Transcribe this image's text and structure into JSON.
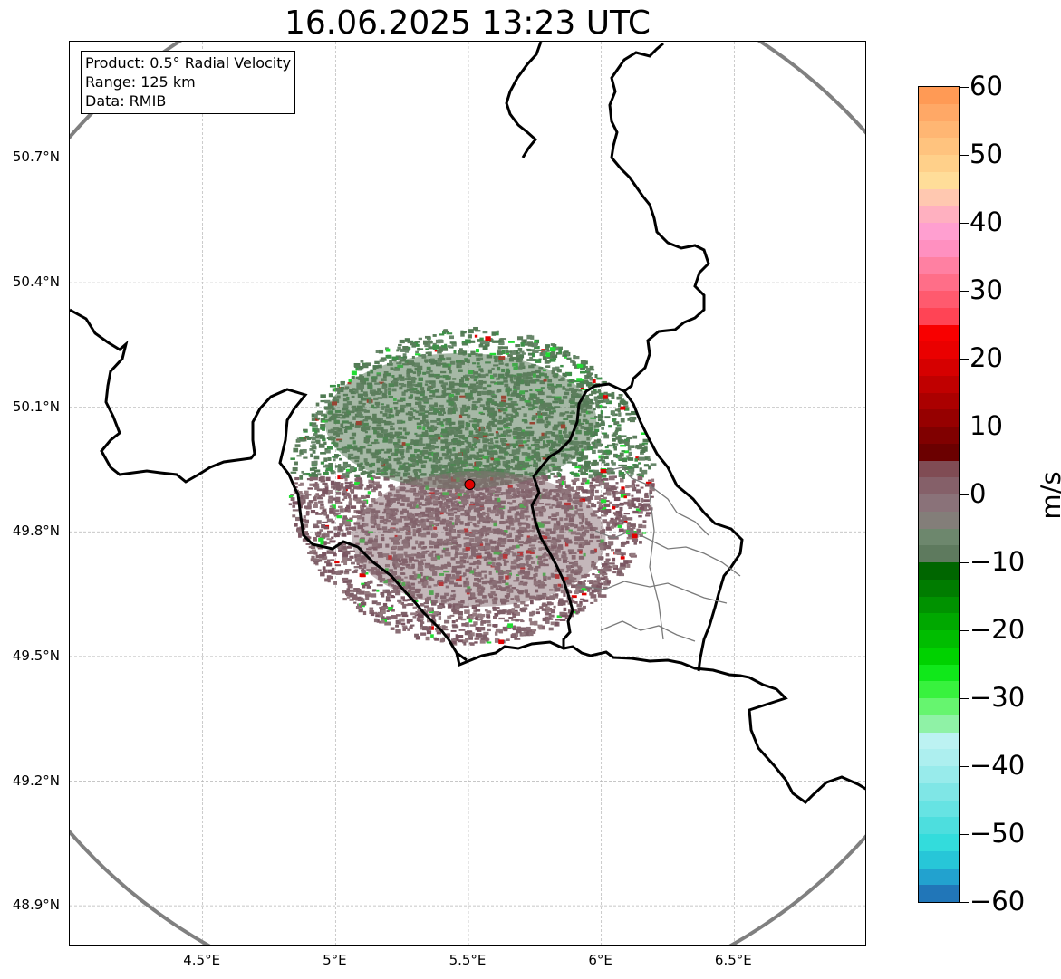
{
  "title": "16.06.2025 13:23 UTC",
  "info_box": {
    "product": "Product: 0.5° Radial Velocity",
    "range": "Range: 125 km",
    "data": "Data: RMIB"
  },
  "axes": {
    "lat_labels": [
      "50.7°N",
      "50.4°N",
      "50.1°N",
      "49.8°N",
      "49.5°N",
      "49.2°N",
      "48.9°N"
    ],
    "lon_labels": [
      "4.5°E",
      "5°E",
      "5.5°E",
      "6°E",
      "6.5°E"
    ],
    "lat_values": [
      50.7,
      50.4,
      50.1,
      49.8,
      49.5,
      49.2,
      48.9
    ],
    "lon_values": [
      4.5,
      5.0,
      5.5,
      6.0,
      6.5
    ],
    "lat_range": [
      48.8,
      50.98
    ],
    "lon_range": [
      4.0,
      7.0
    ]
  },
  "radar": {
    "site_lon": 5.505,
    "site_lat": 49.914,
    "site_color": "#e00000",
    "range_ring_color": "#808080"
  },
  "colorbar": {
    "unit": "m/s",
    "min": -60,
    "max": 60,
    "tick_values": [
      60,
      50,
      40,
      30,
      20,
      10,
      0,
      -10,
      -20,
      -30,
      -40,
      -50,
      -60
    ],
    "tick_labels": [
      "60",
      "50",
      "40",
      "30",
      "20",
      "10",
      "0",
      "−10",
      "−20",
      "−30",
      "−40",
      "−50",
      "−60"
    ],
    "colors_bottom_to_top": [
      "#2176b8",
      "#22a2cf",
      "#27c6d8",
      "#33dcdc",
      "#4ddede",
      "#66e3e3",
      "#7fe6e6",
      "#98ebeb",
      "#adefef",
      "#bcf2f2",
      "#8ff2a6",
      "#66f56f",
      "#38f23e",
      "#10e81a",
      "#00d200",
      "#00bd00",
      "#00a800",
      "#009200",
      "#007c00",
      "#006600",
      "#5e7a5e",
      "#6d876d",
      "#837e79",
      "#8a7279",
      "#856069",
      "#804c54",
      "#6b0000",
      "#800000",
      "#960000",
      "#ab0000",
      "#c00000",
      "#d60000",
      "#ea0000",
      "#f80000",
      "#ff4455",
      "#ff5a6e",
      "#ff6e88",
      "#ff80a2",
      "#ff90c0",
      "#ff9fd0",
      "#ffb0c0",
      "#ffc8b0",
      "#ffdd99",
      "#ffd08a",
      "#ffc37e",
      "#ffb673",
      "#ffa866",
      "#ff9a55"
    ]
  },
  "colors": {
    "grid": "#b5b5b5",
    "border": "#000000",
    "admin_border": "#7a7a7a",
    "green_echo": "#5c7d5c",
    "mauve_echo": "#8a6f76"
  }
}
